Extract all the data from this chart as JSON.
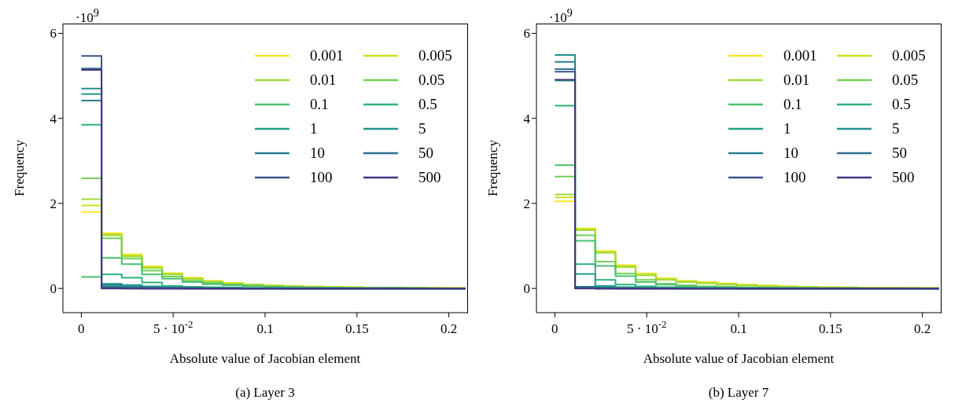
{
  "chart_data": [
    {
      "type": "histogram",
      "title": "(a) Layer 3",
      "xlabel": "Absolute value of Jacobian element",
      "ylabel": "Frequency",
      "annotations": [
        "·10$^{9}$"
      ],
      "legend": "top right",
      "marker": "none",
      "xlim": [
        -0.01,
        0.21
      ],
      "xticks": [
        0,
        {
          "value": 0.05,
          "label": "5 · 10$^{-2}$"
        },
        0.1,
        0.15,
        0.2
      ],
      "ylim": [
        -0.57,
        6.23
      ],
      "yticks": [
        0,
        2,
        4,
        6
      ],
      "bins": [
        0,
        0.011,
        0.022,
        0.033,
        0.044,
        0.055,
        0.066,
        0.077,
        0.088,
        0.099,
        0.11,
        0.121,
        0.132,
        0.143,
        0.154,
        0.165,
        0.176,
        0.187,
        0.198,
        0.209
      ],
      "series": [
        {
          "name": "0.001",
          "color": "#fde725",
          "values": [
            1.8,
            1.3,
            0.8,
            0.52,
            0.36,
            0.25,
            0.18,
            0.13,
            0.09,
            0.07,
            0.06,
            0.05,
            0.04,
            0.03,
            0.02,
            0.02,
            0.01,
            0.01,
            0.01
          ]
        },
        {
          "name": "0.005",
          "color": "#d0e11c",
          "values": [
            1.95,
            1.28,
            0.78,
            0.5,
            0.35,
            0.24,
            0.17,
            0.12,
            0.09,
            0.07,
            0.05,
            0.04,
            0.03,
            0.03,
            0.02,
            0.02,
            0.01,
            0.01,
            0.01
          ]
        },
        {
          "name": "0.01",
          "color": "#a0da39",
          "values": [
            2.1,
            1.25,
            0.75,
            0.48,
            0.33,
            0.22,
            0.16,
            0.11,
            0.08,
            0.06,
            0.05,
            0.04,
            0.03,
            0.02,
            0.02,
            0.01,
            0.01,
            0.01,
            0
          ]
        },
        {
          "name": "0.05",
          "color": "#73d056",
          "values": [
            2.59,
            1.18,
            0.7,
            0.42,
            0.28,
            0.18,
            0.13,
            0.09,
            0.07,
            0.05,
            0.04,
            0.03,
            0.02,
            0.02,
            0.01,
            0.01,
            0.01,
            0,
            0
          ]
        },
        {
          "name": "0.1",
          "color": "#4ac16d",
          "values": [
            0.27,
            0.72,
            0.57,
            0.33,
            0.23,
            0.15,
            0.1,
            0.07,
            0.05,
            0.04,
            0.03,
            0.02,
            0.02,
            0.01,
            0.01,
            0.01,
            0,
            0,
            0
          ]
        },
        {
          "name": "0.5",
          "color": "#2db27d",
          "values": [
            3.85,
            0.33,
            0.25,
            0.14,
            0.06,
            0.04,
            0.03,
            0.02,
            0.01,
            0.01,
            0,
            0,
            0,
            0,
            0,
            0,
            0,
            0,
            0
          ]
        },
        {
          "name": "1",
          "color": "#1fa187",
          "values": [
            4.57,
            0.11,
            0.08,
            0.05,
            0.03,
            0.02,
            0.01,
            0.01,
            0,
            0,
            0,
            0,
            0,
            0,
            0,
            0,
            0,
            0,
            0
          ]
        },
        {
          "name": "5",
          "color": "#21918c",
          "values": [
            4.7,
            0.05,
            0.03,
            0.02,
            0.01,
            0,
            0,
            0,
            0,
            0,
            0,
            0,
            0,
            0,
            0,
            0,
            0,
            0,
            0
          ]
        },
        {
          "name": "10",
          "color": "#277f8e",
          "values": [
            4.42,
            0.08,
            0.05,
            0.03,
            0.02,
            0.01,
            0,
            0,
            0,
            0,
            0,
            0,
            0,
            0,
            0,
            0,
            0,
            0,
            0
          ]
        },
        {
          "name": "50",
          "color": "#2e6e8e",
          "values": [
            5.17,
            0.02,
            0.01,
            0,
            0,
            0,
            0,
            0,
            0,
            0,
            0,
            0,
            0,
            0,
            0,
            0,
            0,
            0,
            0
          ]
        },
        {
          "name": "100",
          "color": "#3b528b",
          "values": [
            5.47,
            0.01,
            0,
            0,
            0,
            0,
            0,
            0,
            0,
            0,
            0,
            0,
            0,
            0,
            0,
            0,
            0,
            0,
            0
          ]
        },
        {
          "name": "500",
          "color": "#46337e",
          "values": [
            5.14,
            0,
            0,
            0,
            0,
            0,
            0,
            0,
            0,
            0,
            0,
            0,
            0,
            0,
            0,
            0,
            0,
            0,
            0
          ]
        }
      ]
    },
    {
      "type": "histogram",
      "title": "(b) Layer 7",
      "xlabel": "Absolute value of Jacobian element",
      "ylabel": "Frequency",
      "annotations": [
        "·10$^{9}$"
      ],
      "legend": "top right",
      "marker": "none",
      "xlim": [
        -0.01,
        0.21
      ],
      "xticks": [
        0,
        {
          "value": 0.05,
          "label": "5 · 10$^{-2}$"
        },
        0.1,
        0.15,
        0.2
      ],
      "ylim": [
        -0.57,
        6.23
      ],
      "yticks": [
        0,
        2,
        4,
        6
      ],
      "bins": [
        0,
        0.011,
        0.022,
        0.033,
        0.044,
        0.055,
        0.066,
        0.077,
        0.088,
        0.099,
        0.11,
        0.121,
        0.132,
        0.143,
        0.154,
        0.165,
        0.176,
        0.187,
        0.198,
        0.209
      ],
      "series": [
        {
          "name": "0.001",
          "color": "#fde725",
          "values": [
            2.05,
            1.41,
            0.88,
            0.55,
            0.35,
            0.24,
            0.18,
            0.15,
            0.12,
            0.09,
            0.07,
            0.05,
            0.04,
            0.03,
            0.03,
            0.02,
            0.02,
            0.01,
            0.01
          ]
        },
        {
          "name": "0.005",
          "color": "#d0e11c",
          "values": [
            2.14,
            1.4,
            0.86,
            0.53,
            0.34,
            0.23,
            0.17,
            0.14,
            0.11,
            0.08,
            0.06,
            0.05,
            0.04,
            0.03,
            0.02,
            0.02,
            0.01,
            0.01,
            0.01
          ]
        },
        {
          "name": "0.01",
          "color": "#a0da39",
          "values": [
            2.21,
            1.37,
            0.84,
            0.5,
            0.31,
            0.2,
            0.15,
            0.12,
            0.09,
            0.07,
            0.05,
            0.04,
            0.03,
            0.02,
            0.02,
            0.01,
            0.01,
            0.01,
            0
          ]
        },
        {
          "name": "0.05",
          "color": "#73d056",
          "values": [
            2.63,
            1.25,
            0.63,
            0.35,
            0.2,
            0.11,
            0.07,
            0.05,
            0.04,
            0.03,
            0.02,
            0.02,
            0.01,
            0.01,
            0.01,
            0,
            0,
            0,
            0
          ]
        },
        {
          "name": "0.1",
          "color": "#4ac16d",
          "values": [
            2.9,
            1.12,
            0.53,
            0.29,
            0.15,
            0.09,
            0.06,
            0.04,
            0.03,
            0.02,
            0.02,
            0.01,
            0.01,
            0,
            0,
            0,
            0,
            0,
            0
          ]
        },
        {
          "name": "0.5",
          "color": "#2db27d",
          "values": [
            4.3,
            0.57,
            0.2,
            0.09,
            0.05,
            0.03,
            0.02,
            0.01,
            0.01,
            0,
            0,
            0,
            0,
            0,
            0,
            0,
            0,
            0,
            0
          ]
        },
        {
          "name": "1",
          "color": "#1fa187",
          "values": [
            4.89,
            0.34,
            0.06,
            0.03,
            0.02,
            0.01,
            0,
            0,
            0,
            0,
            0,
            0,
            0,
            0,
            0,
            0,
            0,
            0,
            0
          ]
        },
        {
          "name": "5",
          "color": "#21918c",
          "values": [
            5.49,
            0.04,
            0.02,
            0.01,
            0,
            0,
            0,
            0,
            0,
            0,
            0,
            0,
            0,
            0,
            0,
            0,
            0,
            0,
            0
          ]
        },
        {
          "name": "10",
          "color": "#277f8e",
          "values": [
            5.33,
            0.03,
            0.01,
            0,
            0,
            0,
            0,
            0,
            0,
            0,
            0,
            0,
            0,
            0,
            0,
            0,
            0,
            0,
            0
          ]
        },
        {
          "name": "50",
          "color": "#2e6e8e",
          "values": [
            5.16,
            0.01,
            0,
            0,
            0,
            0,
            0,
            0,
            0,
            0,
            0,
            0,
            0,
            0,
            0,
            0,
            0,
            0,
            0
          ]
        },
        {
          "name": "100",
          "color": "#3b528b",
          "values": [
            5.1,
            0.01,
            0,
            0,
            0,
            0,
            0,
            0,
            0,
            0,
            0,
            0,
            0,
            0,
            0,
            0,
            0,
            0,
            0
          ]
        },
        {
          "name": "500",
          "color": "#46337e",
          "values": [
            4.91,
            0,
            0,
            0,
            0,
            0,
            0,
            0,
            0,
            0,
            0,
            0,
            0,
            0,
            0,
            0,
            0,
            0,
            0
          ]
        }
      ]
    }
  ]
}
